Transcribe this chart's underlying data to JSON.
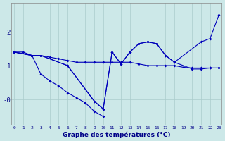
{
  "xlabel": "Graphe des températures (°C)",
  "bg_color": "#cce8e8",
  "line_color": "#0000bb",
  "grid_color": "#aacccc",
  "ylim": [
    -0.75,
    2.85
  ],
  "xlim": [
    -0.3,
    23.3
  ],
  "line1_x": [
    0,
    1,
    2,
    3,
    4,
    5,
    6,
    7,
    8,
    9,
    10,
    11,
    12,
    13,
    14,
    15,
    16,
    17,
    18,
    19,
    20,
    21,
    22,
    23
  ],
  "line1_y": [
    1.4,
    1.4,
    1.3,
    1.3,
    1.25,
    1.2,
    1.15,
    1.1,
    1.1,
    1.1,
    1.1,
    1.1,
    1.1,
    1.1,
    1.05,
    1.0,
    1.0,
    1.0,
    1.0,
    0.95,
    0.93,
    0.93,
    0.93,
    0.93
  ],
  "line2_x": [
    0,
    2,
    3,
    4,
    5,
    6,
    7,
    8,
    9,
    10
  ],
  "line2_y": [
    1.4,
    1.3,
    0.75,
    0.55,
    0.4,
    0.2,
    0.05,
    -0.1,
    -0.35,
    -0.5
  ],
  "line3_x": [
    0,
    2,
    3,
    6,
    9,
    10,
    11,
    12,
    13,
    14,
    15,
    16,
    17,
    18,
    20,
    21,
    22,
    23
  ],
  "line3_y": [
    1.4,
    1.3,
    1.3,
    1.0,
    -0.05,
    -0.28,
    1.4,
    1.05,
    1.4,
    1.65,
    1.7,
    1.65,
    1.3,
    1.1,
    0.9,
    0.9,
    0.93,
    0.93
  ],
  "line4_x": [
    0,
    2,
    3,
    6,
    9,
    10,
    11,
    12,
    13,
    14,
    15,
    16,
    17,
    18,
    21,
    22,
    23
  ],
  "line4_y": [
    1.4,
    1.3,
    1.3,
    1.0,
    -0.05,
    -0.28,
    1.4,
    1.05,
    1.4,
    1.65,
    1.7,
    1.65,
    1.3,
    1.1,
    1.7,
    1.8,
    2.5
  ]
}
